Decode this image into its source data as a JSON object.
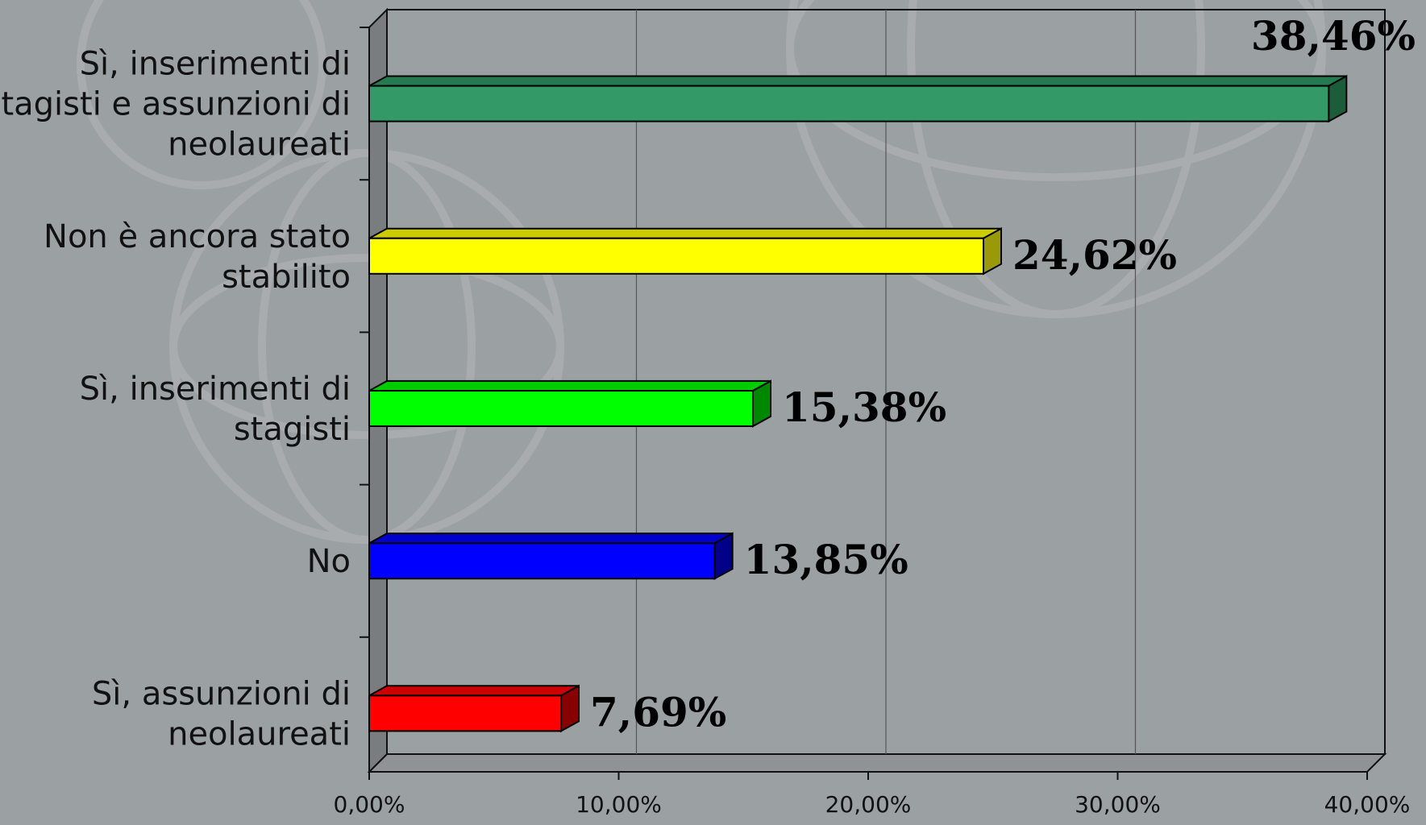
{
  "chart_data": {
    "type": "bar",
    "orientation": "horizontal",
    "style": "3d",
    "title": "",
    "xlabel": "",
    "ylabel": "",
    "xlim": [
      0,
      40
    ],
    "grid": true,
    "categories": [
      [
        "Sì, inserimenti di",
        "stagisti e assunzioni di",
        "neolaureati"
      ],
      [
        "Non è ancora stato",
        "stabilito"
      ],
      [
        "Sì, inserimenti di",
        "stagisti"
      ],
      [
        "No"
      ],
      [
        "Sì, assunzioni di",
        "neolaureati"
      ]
    ],
    "values": [
      38.46,
      24.62,
      15.38,
      13.85,
      7.69
    ],
    "data_labels": [
      "38,46%",
      "24,62%",
      "15,38%",
      "13,85%",
      "7,69%"
    ],
    "colors": [
      {
        "front": "#339966",
        "top": "#267a4f",
        "side": "#1d5c3b"
      },
      {
        "front": "#ffff00",
        "top": "#cccc00",
        "side": "#99990a"
      },
      {
        "front": "#00ff00",
        "top": "#00cc00",
        "side": "#008800"
      },
      {
        "front": "#0000ff",
        "top": "#0000cc",
        "side": "#000088"
      },
      {
        "front": "#ff0000",
        "top": "#cc0000",
        "side": "#880000"
      }
    ],
    "x_ticks": [
      "0,00%",
      "10,00%",
      "20,00%",
      "30,00%",
      "40,00%"
    ],
    "tick_values": [
      0,
      10,
      20,
      30,
      40
    ]
  }
}
